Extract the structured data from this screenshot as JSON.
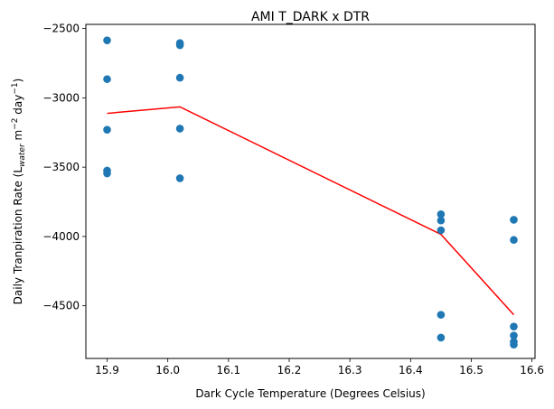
{
  "chart_data": {
    "type": "scatter",
    "title": "AMI T_DARK x DTR",
    "xlabel": "Dark Cycle Temperature (Degrees Celsius)",
    "ylabel": {
      "prefix": "Daily Tranpiration Rate (L",
      "sub": "water",
      "middle": " m",
      "sup1": "−2",
      "middle2": " day",
      "sup2": "−1",
      "suffix": ")"
    },
    "xlim": [
      15.865,
      16.605
    ],
    "ylim": [
      -4880,
      -2470
    ],
    "xticks": [
      15.9,
      16.0,
      16.1,
      16.2,
      16.3,
      16.4,
      16.5,
      16.6
    ],
    "xtick_labels": [
      "15.9",
      "16.0",
      "16.1",
      "16.2",
      "16.3",
      "16.4",
      "16.5",
      "16.6"
    ],
    "yticks": [
      -4500,
      -4000,
      -3500,
      -3000,
      -2500
    ],
    "ytick_labels": [
      "−4500",
      "−4000",
      "−3500",
      "−3000",
      "−2500"
    ],
    "grid": false,
    "scatter": {
      "color": "#1f77b4",
      "points": [
        {
          "x": 15.9,
          "y": -2585
        },
        {
          "x": 15.9,
          "y": -2865
        },
        {
          "x": 15.9,
          "y": -3230
        },
        {
          "x": 15.9,
          "y": -3525
        },
        {
          "x": 15.9,
          "y": -3545
        },
        {
          "x": 16.02,
          "y": -2605
        },
        {
          "x": 16.02,
          "y": -2620
        },
        {
          "x": 16.02,
          "y": -2855
        },
        {
          "x": 16.02,
          "y": -3222
        },
        {
          "x": 16.02,
          "y": -3580
        },
        {
          "x": 16.45,
          "y": -3840
        },
        {
          "x": 16.45,
          "y": -3885
        },
        {
          "x": 16.45,
          "y": -3955
        },
        {
          "x": 16.45,
          "y": -4565
        },
        {
          "x": 16.45,
          "y": -4730
        },
        {
          "x": 16.57,
          "y": -3880
        },
        {
          "x": 16.57,
          "y": -4025
        },
        {
          "x": 16.57,
          "y": -4650
        },
        {
          "x": 16.57,
          "y": -4715
        },
        {
          "x": 16.57,
          "y": -4760
        },
        {
          "x": 16.57,
          "y": -4780
        }
      ]
    },
    "line": {
      "color": "#ff0000",
      "points": [
        {
          "x": 15.9,
          "y": -3112
        },
        {
          "x": 16.02,
          "y": -3065
        },
        {
          "x": 16.45,
          "y": -3985
        },
        {
          "x": 16.57,
          "y": -4565
        }
      ]
    }
  }
}
